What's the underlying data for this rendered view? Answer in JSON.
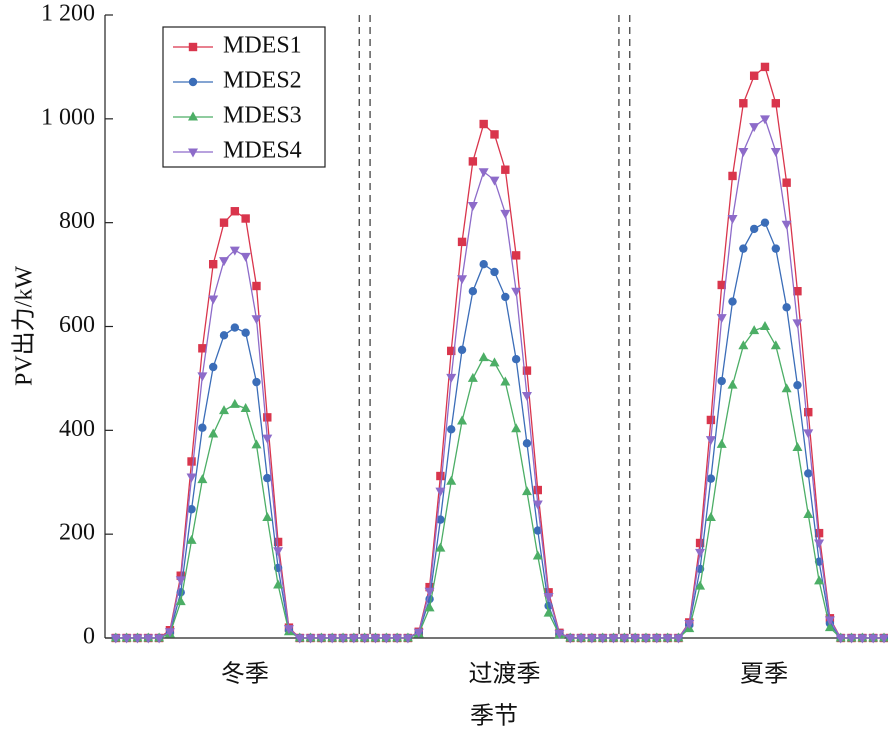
{
  "chart_data": {
    "type": "line",
    "ylabel": "PV出力/kW",
    "xlabel": "季节",
    "categories": [
      "冬季",
      "过渡季",
      "夏季"
    ],
    "x": [
      1,
      2,
      3,
      4,
      5,
      6,
      7,
      8,
      9,
      10,
      11,
      12,
      13,
      14,
      15,
      16,
      17,
      18,
      19,
      20,
      21,
      22,
      23,
      24,
      25,
      26,
      27,
      28,
      29,
      30,
      31,
      32,
      33,
      34,
      35,
      36,
      37,
      38,
      39,
      40,
      41,
      42,
      43,
      44,
      45,
      46,
      47,
      48,
      49,
      50,
      51,
      52,
      53,
      54,
      55,
      56,
      57,
      58,
      59,
      60,
      61,
      62,
      63,
      64,
      65,
      66,
      67,
      68,
      69,
      70,
      71,
      72
    ],
    "xlim": [
      0,
      72
    ],
    "dividers": [
      23.5,
      24.5,
      47.5,
      48.5
    ],
    "ylim": [
      0,
      1200
    ],
    "yticks": [
      0,
      200,
      400,
      600,
      800,
      {
        "value": 1000,
        "label": "1 000"
      },
      {
        "value": 1200,
        "label": "1 200"
      }
    ],
    "legend": "upper left",
    "series": [
      {
        "name": "MDES1",
        "color": "#d9354c",
        "marker": "square",
        "values": [
          0,
          0,
          0,
          0,
          0,
          15,
          120,
          340,
          558,
          720,
          800,
          822,
          808,
          678,
          425,
          185,
          20,
          0,
          0,
          0,
          0,
          0,
          0,
          0,
          0,
          0,
          0,
          0,
          12,
          98,
          312,
          553,
          763,
          918,
          990,
          970,
          902,
          737,
          515,
          285,
          88,
          10,
          0,
          0,
          0,
          0,
          0,
          0,
          0,
          0,
          0,
          0,
          0,
          30,
          183,
          420,
          680,
          890,
          1030,
          1083,
          1100,
          1030,
          877,
          668,
          435,
          202,
          38,
          0,
          0,
          0,
          0,
          0
        ]
      },
      {
        "name": "MDES2",
        "color": "#3b6db8",
        "marker": "circle",
        "values": [
          0,
          0,
          0,
          0,
          0,
          10,
          88,
          248,
          405,
          522,
          583,
          598,
          588,
          493,
          308,
          135,
          15,
          0,
          0,
          0,
          0,
          0,
          0,
          0,
          0,
          0,
          0,
          0,
          10,
          75,
          228,
          402,
          555,
          668,
          720,
          705,
          657,
          537,
          375,
          207,
          62,
          8,
          0,
          0,
          0,
          0,
          0,
          0,
          0,
          0,
          0,
          0,
          0,
          25,
          133,
          307,
          495,
          648,
          750,
          788,
          800,
          750,
          637,
          487,
          317,
          147,
          28,
          0,
          0,
          0,
          0,
          0
        ]
      },
      {
        "name": "MDES3",
        "color": "#4cae66",
        "marker": "triangle-up",
        "values": [
          0,
          0,
          0,
          0,
          0,
          8,
          70,
          188,
          305,
          393,
          438,
          450,
          442,
          372,
          232,
          102,
          12,
          0,
          0,
          0,
          0,
          0,
          0,
          0,
          0,
          0,
          0,
          0,
          8,
          58,
          173,
          302,
          418,
          500,
          540,
          530,
          493,
          403,
          282,
          158,
          48,
          6,
          0,
          0,
          0,
          0,
          0,
          0,
          0,
          0,
          0,
          0,
          0,
          18,
          100,
          232,
          373,
          487,
          563,
          592,
          600,
          563,
          480,
          367,
          238,
          110,
          20,
          0,
          0,
          0,
          0,
          0
        ]
      },
      {
        "name": "MDES4",
        "color": "#8d6bc9",
        "marker": "triangle-down",
        "values": [
          0,
          0,
          0,
          0,
          0,
          12,
          112,
          310,
          505,
          653,
          727,
          747,
          735,
          615,
          385,
          168,
          18,
          0,
          0,
          0,
          0,
          0,
          0,
          0,
          0,
          0,
          0,
          0,
          11,
          90,
          283,
          502,
          692,
          833,
          898,
          882,
          818,
          668,
          467,
          258,
          80,
          9,
          0,
          0,
          0,
          0,
          0,
          0,
          0,
          0,
          0,
          0,
          0,
          28,
          165,
          382,
          617,
          808,
          937,
          985,
          1000,
          937,
          797,
          607,
          395,
          183,
          35,
          0,
          0,
          0,
          0,
          0
        ]
      }
    ]
  }
}
